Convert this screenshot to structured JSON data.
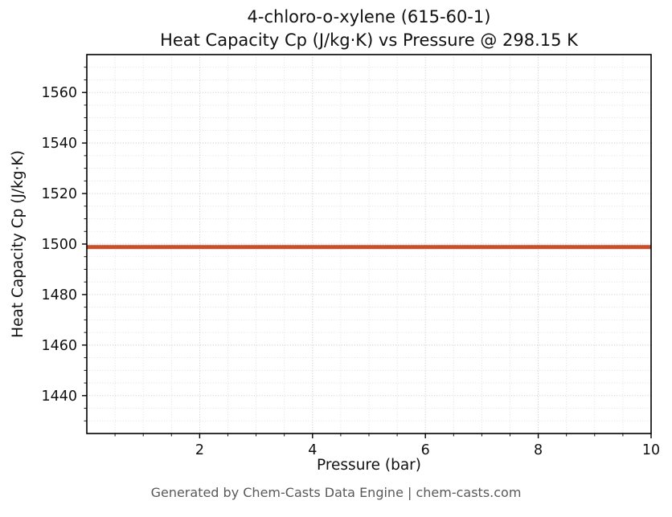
{
  "title": {
    "line1": "4-chloro-o-xylene (615-60-1)",
    "line2": "Heat Capacity Cp (J/kg·K) vs Pressure @ 298.15 K"
  },
  "footer": "Generated by Chem-Casts Data Engine | chem-casts.com",
  "chart_data": {
    "type": "line",
    "title": "4-chloro-o-xylene (615-60-1)\nHeat Capacity Cp (J/kg·K) vs Pressure @ 298.15 K",
    "xlabel": "Pressure (bar)",
    "ylabel": "Heat Capacity Cp (J/kg·K)",
    "xlim": [
      0,
      10
    ],
    "ylim": [
      1425,
      1575
    ],
    "xticks": [
      2,
      4,
      6,
      8,
      10
    ],
    "yticks": [
      1440,
      1460,
      1480,
      1500,
      1520,
      1540,
      1560
    ],
    "x_minor_step": 0.5,
    "y_minor_step": 5,
    "grid": true,
    "legend": "none",
    "series": [
      {
        "name": "Heat Capacity Cp @ 298.15 K",
        "color": "#c94f2a",
        "line_width": 5,
        "x": [
          0,
          10
        ],
        "y": [
          1498.8,
          1498.8
        ]
      }
    ]
  },
  "colors": {
    "line": "#c94f2a",
    "major_grid": "#c2c2c2",
    "minor_grid": "#d9d9d9",
    "frame": "#000000",
    "footer_text": "#595959"
  }
}
